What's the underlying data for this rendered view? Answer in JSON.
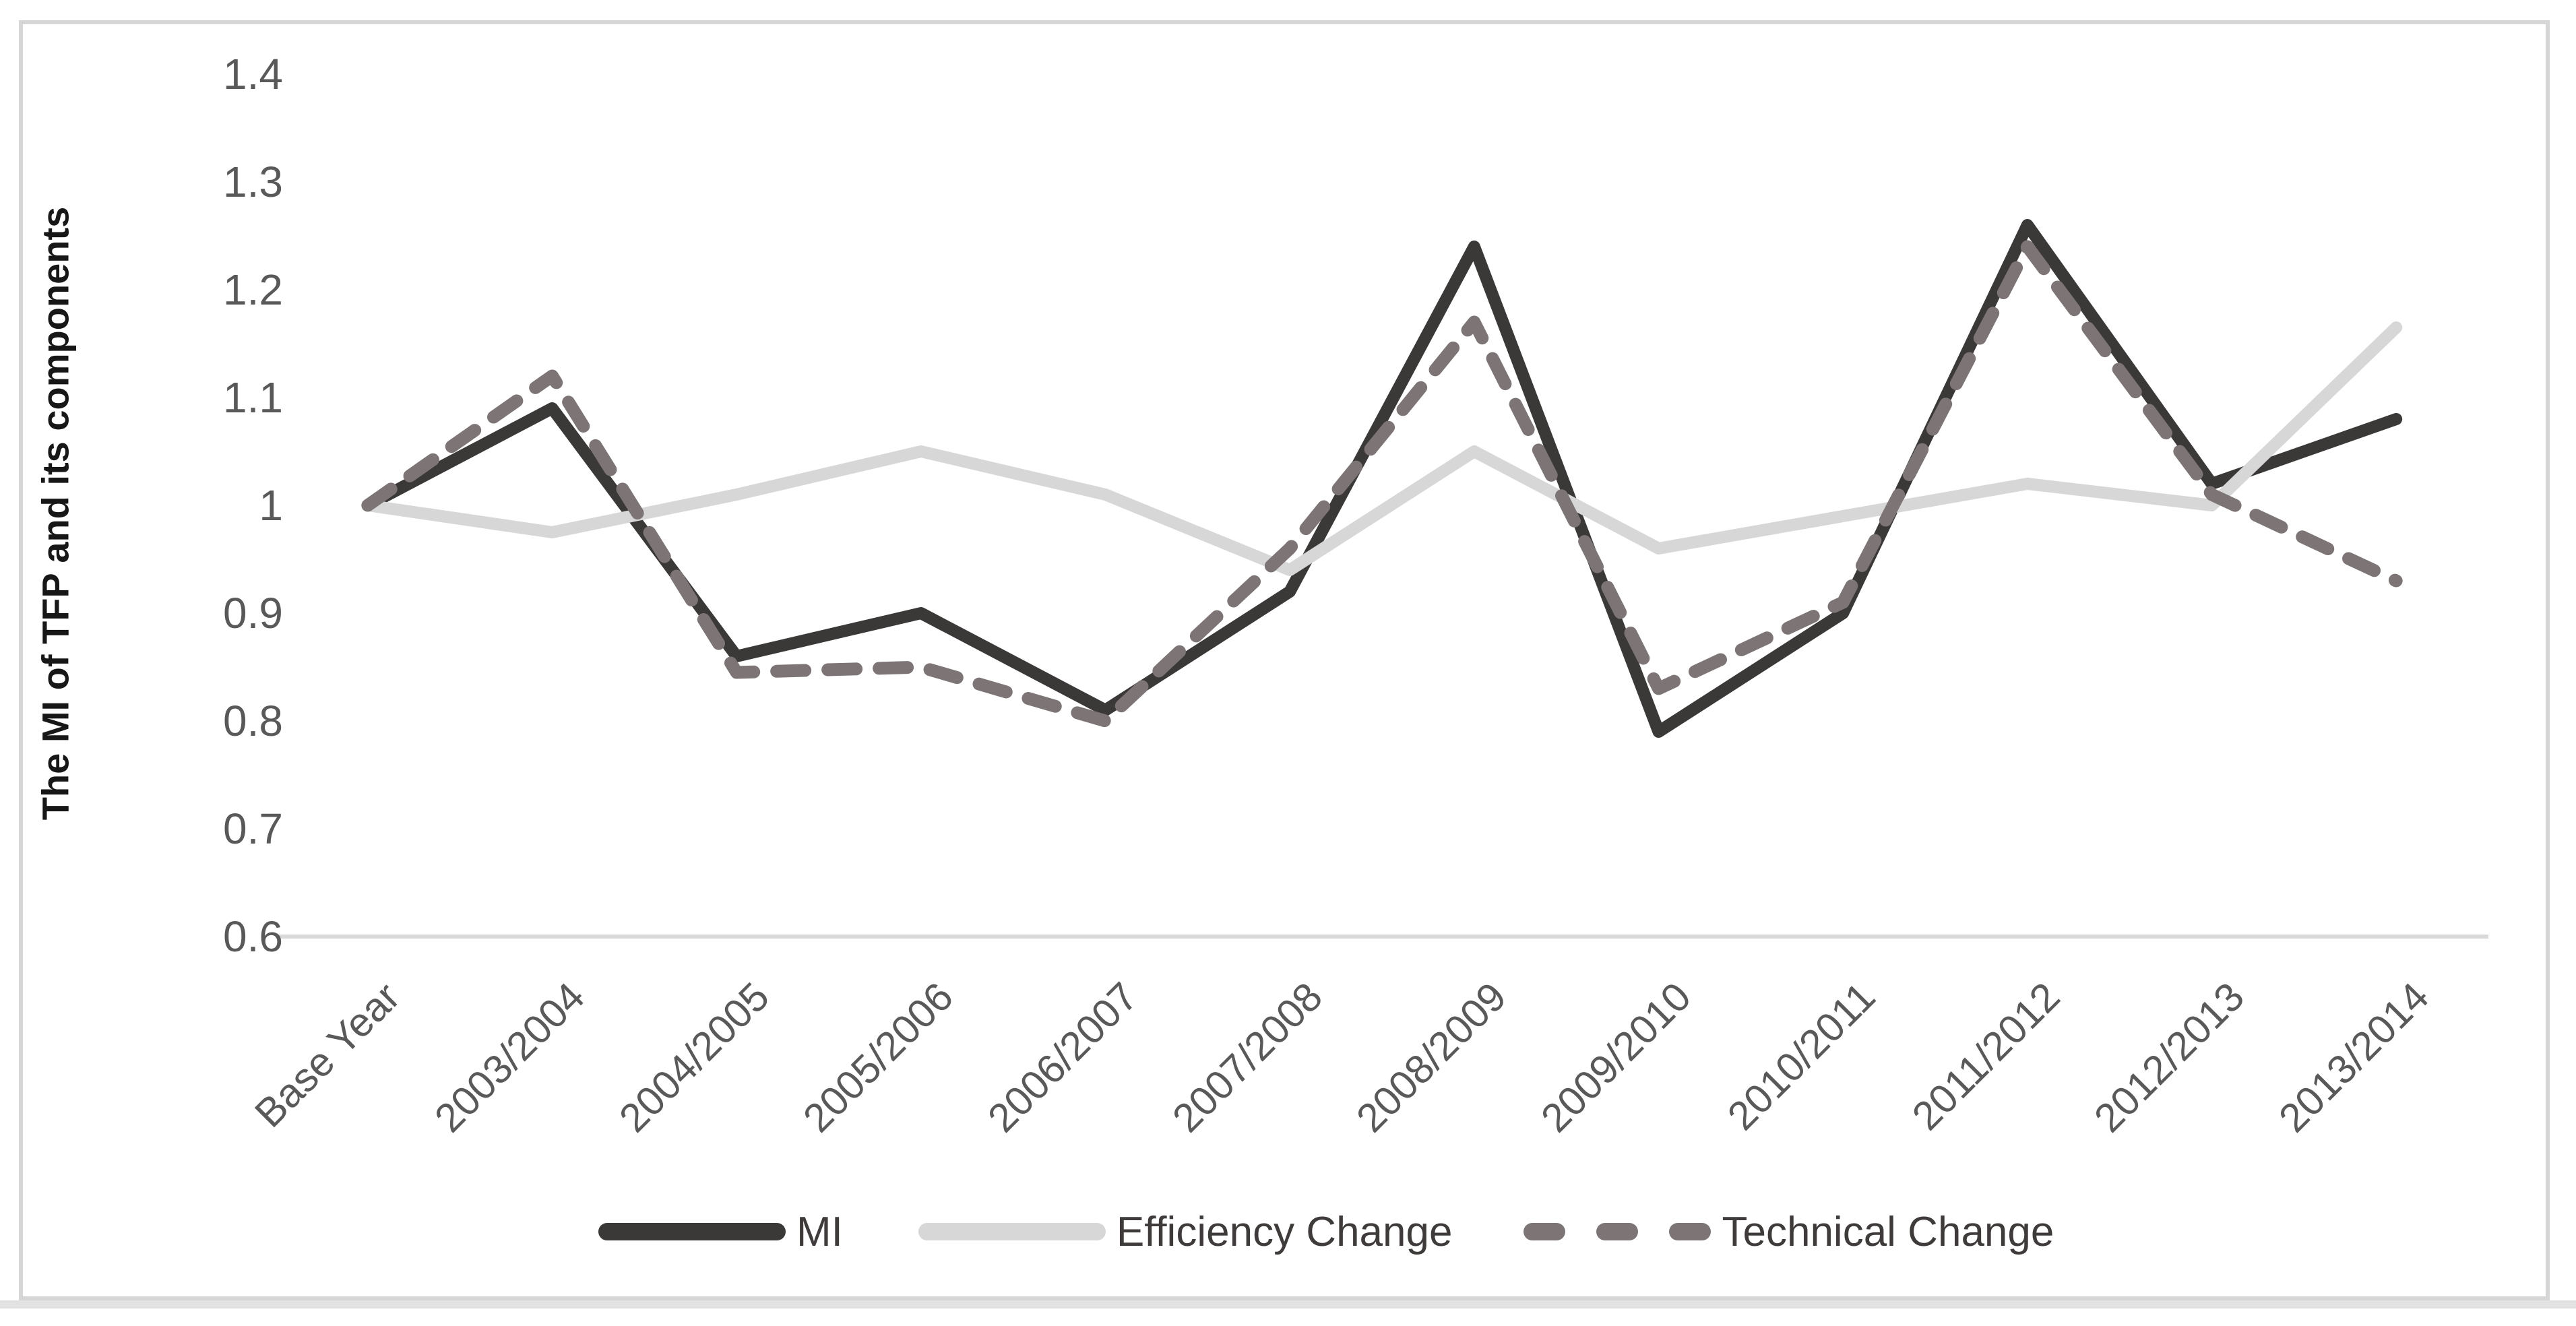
{
  "figure": {
    "background": "#ffffff",
    "frame_border_color": "#d6d6d6",
    "axis_line_color": "#d9d9d9",
    "tick_text_color": "#595959"
  },
  "chart_data": {
    "type": "line",
    "title": "",
    "xlabel": "",
    "ylabel": "The MI of TFP and its components",
    "ylim": [
      0.6,
      1.4
    ],
    "ytick_labels": [
      "1.4",
      "1.3",
      "1.2",
      "1.1",
      "1",
      "0.9",
      "0.8",
      "0.7",
      "0.6"
    ],
    "grid": false,
    "legend_position": "bottom",
    "categories": [
      "Base Year",
      "2003/2004",
      "2004/2005",
      "2005/2006",
      "2006/2007",
      "2007/2008",
      "2008/2009",
      "2009/2010",
      "2010/2011",
      "2011/2012",
      "2012/2013",
      "2013/2014"
    ],
    "series": [
      {
        "name": "MI",
        "style": "solid",
        "color": "#3b3838",
        "values": [
          1.0,
          1.09,
          0.86,
          0.9,
          0.81,
          0.92,
          1.24,
          0.79,
          0.9,
          1.26,
          1.02,
          1.08
        ]
      },
      {
        "name": "Efficiency Change",
        "style": "solid",
        "color": "#d7d7d7",
        "values": [
          1.0,
          0.975,
          1.01,
          1.05,
          1.01,
          0.94,
          1.05,
          0.96,
          0.99,
          1.02,
          1.0,
          1.165
        ]
      },
      {
        "name": "Technical Change",
        "style": "dashed",
        "color": "#7d7575",
        "values": [
          1.0,
          1.12,
          0.845,
          0.85,
          0.8,
          0.96,
          1.17,
          0.83,
          0.91,
          1.24,
          1.01,
          0.93
        ]
      }
    ]
  }
}
